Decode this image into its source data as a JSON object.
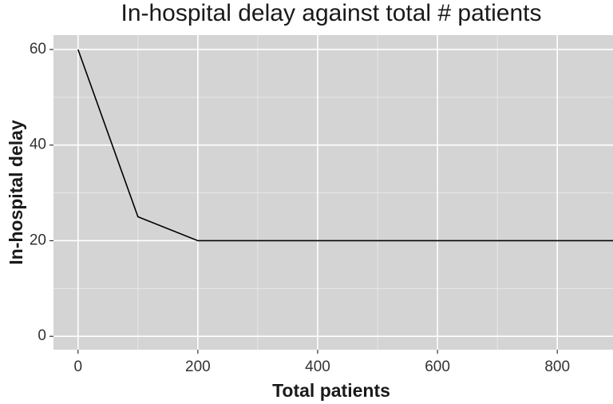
{
  "chart_data": {
    "type": "line",
    "title": "In-hospital delay against total # patients",
    "x_label": "Total patients",
    "y_label": "In-hospital delay",
    "x": [
      0,
      100,
      200,
      893
    ],
    "values": [
      60,
      25,
      20,
      20
    ],
    "color": "#000000",
    "xlim": [
      -41,
      893
    ],
    "ylim": [
      -2.8,
      63
    ],
    "xticks": [
      0,
      200,
      400,
      600,
      800
    ],
    "yticks": [
      0,
      20,
      40,
      60
    ],
    "x_minor_grid": [
      100,
      300,
      500,
      700
    ],
    "y_minor_grid": [
      10,
      30,
      50
    ],
    "grid": true
  }
}
